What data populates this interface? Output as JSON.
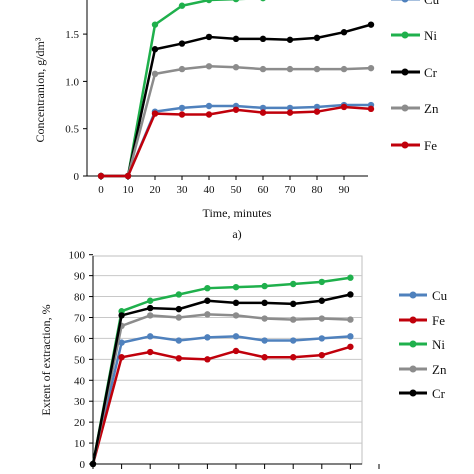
{
  "chart_data": [
    {
      "type": "line",
      "panel_label": "a)",
      "xlabel": "Time, minutes",
      "ylabel": "Concentranion, g/dm³",
      "x": [
        0,
        10,
        20,
        30,
        40,
        50,
        60,
        70,
        80,
        90,
        100
      ],
      "x_tick_labels": [
        "0",
        "10",
        "20",
        "30",
        "40",
        "50",
        "60",
        "70",
        "80",
        "90"
      ],
      "y_tick_labels": [
        "0",
        "0.5",
        "1.0",
        "1.5"
      ],
      "ylim": [
        0,
        1.9
      ],
      "legend_position": "right",
      "series": [
        {
          "name": "Cu",
          "color": "#4f81bd",
          "values": [
            0,
            0,
            0.68,
            0.72,
            0.74,
            0.74,
            0.72,
            0.72,
            0.73,
            0.75,
            0.75
          ]
        },
        {
          "name": "Ni",
          "color": "#1fb04c",
          "values": [
            0,
            0,
            1.6,
            1.8,
            1.86,
            1.87,
            1.88,
            null,
            null,
            null,
            null
          ]
        },
        {
          "name": "Cr",
          "color": "#000000",
          "values": [
            0,
            0,
            1.34,
            1.4,
            1.47,
            1.45,
            1.45,
            1.44,
            1.46,
            1.52,
            1.6
          ]
        },
        {
          "name": "Zn",
          "color": "#8c8c8c",
          "values": [
            0,
            0,
            1.08,
            1.13,
            1.16,
            1.15,
            1.13,
            1.13,
            1.13,
            1.13,
            1.14
          ]
        },
        {
          "name": "Fe",
          "color": "#c0000b",
          "values": [
            0,
            0,
            0.66,
            0.65,
            0.65,
            0.7,
            0.67,
            0.67,
            0.68,
            0.73,
            0.71
          ]
        }
      ]
    },
    {
      "type": "line",
      "xlabel": "",
      "ylabel": "Extent of extraction, %",
      "x": [
        0,
        1,
        2,
        3,
        4,
        5,
        6,
        7,
        8,
        9,
        10
      ],
      "y_tick_labels": [
        "0",
        "10",
        "20",
        "30",
        "40",
        "50",
        "60",
        "70",
        "80",
        "90",
        "100"
      ],
      "ylim": [
        0,
        100
      ],
      "legend_position": "right",
      "series": [
        {
          "name": "Cu",
          "color": "#4f81bd",
          "values": [
            0,
            58,
            61,
            59,
            60.5,
            61,
            59,
            59,
            60,
            61,
            null
          ]
        },
        {
          "name": "Fe",
          "color": "#c0000b",
          "values": [
            0,
            51,
            53.5,
            50.5,
            50,
            54,
            51,
            51,
            52,
            56,
            null
          ]
        },
        {
          "name": "Ni",
          "color": "#1fb04c",
          "values": [
            0,
            73,
            78,
            81,
            84,
            84.5,
            85,
            86,
            87,
            89,
            null
          ]
        },
        {
          "name": "Zn",
          "color": "#8c8c8c",
          "values": [
            0,
            66,
            71,
            70,
            71.5,
            71,
            69.5,
            69,
            69.5,
            69,
            null
          ]
        },
        {
          "name": "Cr",
          "color": "#000000",
          "values": [
            0,
            71,
            74.5,
            74,
            78,
            77,
            77,
            76.5,
            78,
            81,
            null
          ]
        }
      ]
    }
  ]
}
